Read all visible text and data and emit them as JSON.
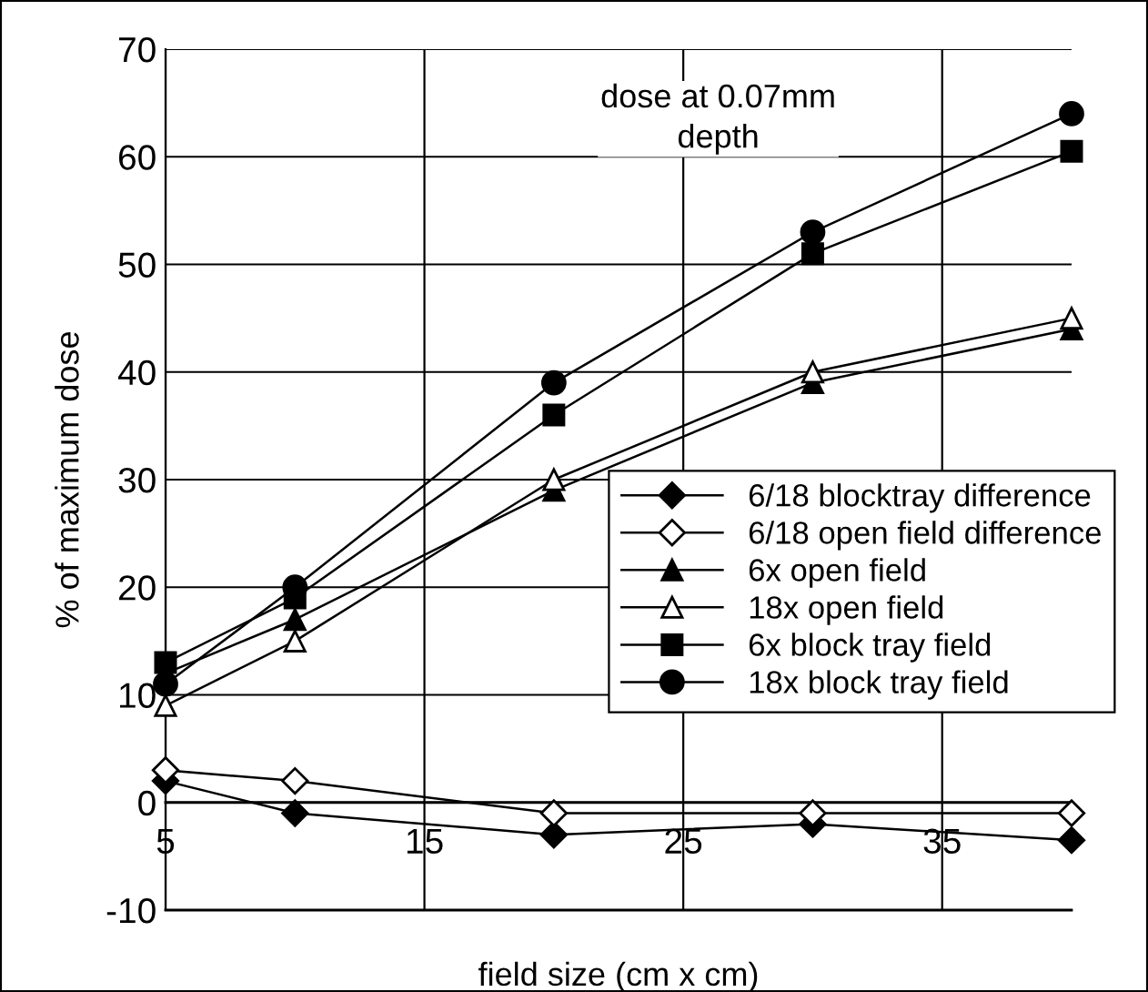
{
  "chart_data": {
    "type": "line",
    "xlabel": "field size (cm x cm)",
    "ylabel": "% of maximum dose",
    "annotations": [
      "dose at 0.07mm\ndepth"
    ],
    "x": [
      5,
      10,
      20,
      30,
      40
    ],
    "xlim": [
      5,
      40
    ],
    "xticks": [
      5,
      15,
      25,
      35
    ],
    "ylim": [
      -10,
      70
    ],
    "yticks": [
      -10,
      0,
      10,
      20,
      30,
      40,
      50,
      60,
      70
    ],
    "grid": true,
    "legend": "right",
    "series": [
      {
        "name": "6/18 blocktray difference",
        "color": "#000000",
        "marker": "diamond",
        "values": [
          2,
          -1,
          -3,
          -2,
          -3.5
        ]
      },
      {
        "name": "6/18 open field difference",
        "color": "#ffffff",
        "marker": "diamond",
        "values": [
          3,
          2,
          -1,
          -1,
          -1
        ]
      },
      {
        "name": "6x open field",
        "color": "#000000",
        "marker": "triangle",
        "values": [
          12,
          17,
          29,
          39,
          44
        ]
      },
      {
        "name": "18x open field",
        "color": "#ffffff",
        "marker": "triangle",
        "values": [
          9,
          15,
          30,
          40,
          45
        ]
      },
      {
        "name": "6x block tray field",
        "color": "#000000",
        "marker": "square",
        "values": [
          13,
          19,
          36,
          51,
          60.5
        ]
      },
      {
        "name": "18x block tray field",
        "color": "#000000",
        "marker": "circle",
        "values": [
          11,
          20,
          39,
          53,
          64
        ]
      }
    ]
  }
}
